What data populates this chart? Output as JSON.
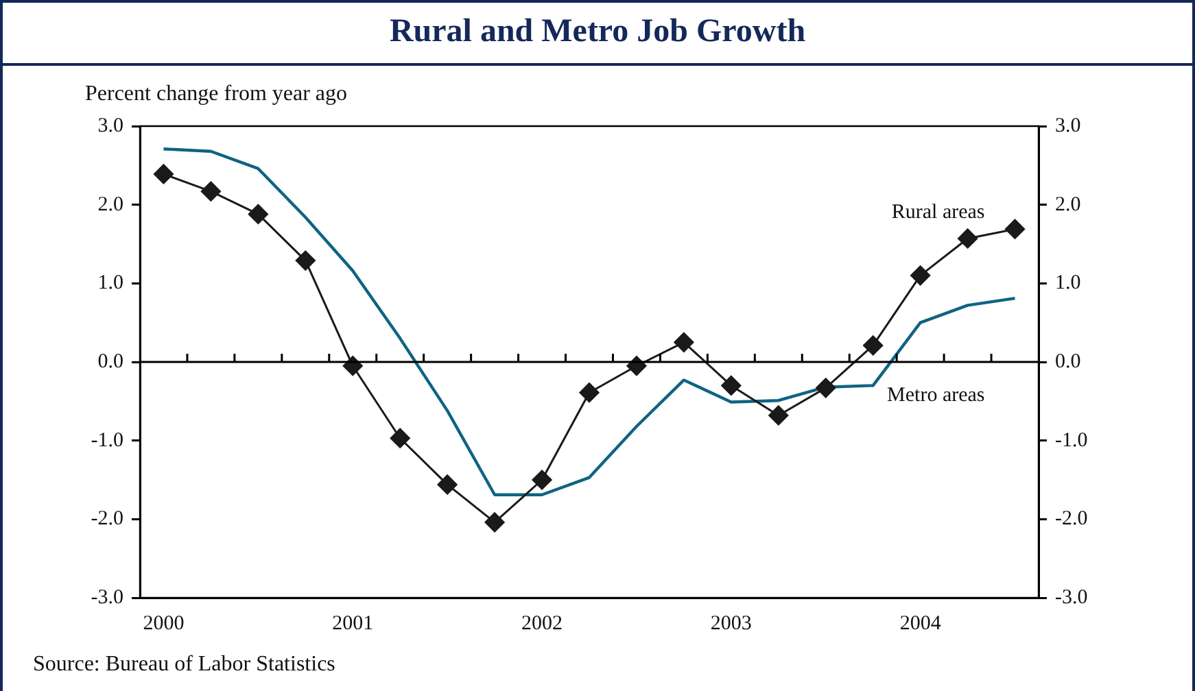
{
  "chart_data": {
    "type": "line",
    "title": "Rural and Metro Job Growth",
    "ylabel": "Percent change from year ago",
    "categories": [
      "2000",
      null,
      null,
      null,
      "2001",
      null,
      null,
      null,
      "2002",
      null,
      null,
      null,
      "2003",
      null,
      null,
      null,
      "2004",
      null,
      null
    ],
    "series": [
      {
        "name": "Rural areas",
        "color": "#1a1a1a",
        "marker": "diamond",
        "values": [
          2.39,
          2.17,
          1.88,
          1.29,
          -0.05,
          -0.97,
          -1.56,
          -2.04,
          -1.5,
          -0.39,
          -0.05,
          0.25,
          -0.3,
          -0.68,
          -0.33,
          0.21,
          1.1,
          1.57,
          1.69
        ]
      },
      {
        "name": "Metro areas",
        "color": "#0e6482",
        "marker": "none",
        "values": [
          2.71,
          2.68,
          2.46,
          1.84,
          1.16,
          0.3,
          -0.62,
          -1.69,
          -1.69,
          -1.47,
          -0.82,
          -0.23,
          -0.51,
          -0.49,
          -0.32,
          -0.3,
          0.5,
          0.72,
          0.81
        ]
      }
    ],
    "ylim": [
      -3,
      3
    ],
    "yticks": [
      {
        "value": -3,
        "label": "-3.0"
      },
      {
        "value": -2,
        "label": "-2.0"
      },
      {
        "value": -1,
        "label": "-1.0"
      },
      {
        "value": 0,
        "label": "0.0"
      },
      {
        "value": 1,
        "label": "1.0"
      },
      {
        "value": 2,
        "label": "2.0"
      },
      {
        "value": 3,
        "label": "3.0"
      }
    ],
    "y2lim": [
      -3,
      3
    ],
    "y2ticks": [
      {
        "value": -3,
        "label": "-3.0"
      },
      {
        "value": -2,
        "label": "-2.0"
      },
      {
        "value": -1,
        "label": "-1.0"
      },
      {
        "value": 0,
        "label": "0.0"
      },
      {
        "value": 1,
        "label": "1.0"
      },
      {
        "value": 2,
        "label": "2.0"
      },
      {
        "value": 3,
        "label": "3.0"
      }
    ],
    "ref_lines": [
      {
        "axis": "y",
        "value": 0,
        "color": "#000000"
      }
    ],
    "grid": false,
    "legend": false,
    "annotations": [
      "Source: Bureau of Labor Statistics"
    ]
  }
}
